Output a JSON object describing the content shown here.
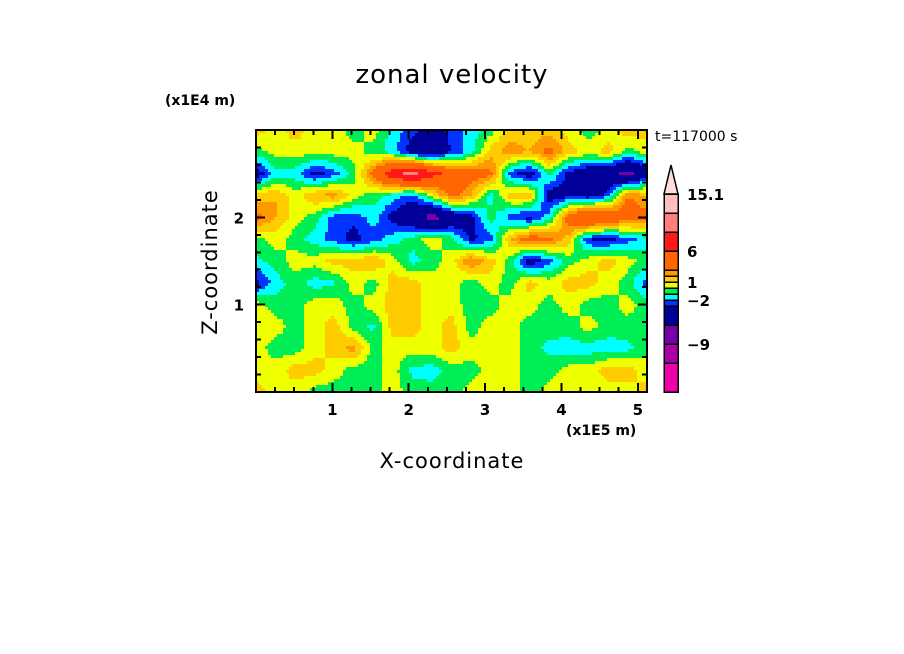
{
  "chart_data": {
    "type": "heatmap",
    "title": "zonal velocity",
    "xlabel": "X-coordinate",
    "ylabel": "Z-coordinate",
    "x_unit": "(x1E5 m)",
    "y_unit": "(x1E4 m)",
    "time_label": "t=117000 s",
    "xlim": [
      0,
      5.12
    ],
    "ylim": [
      0,
      3
    ],
    "xticks": [
      1,
      2,
      3,
      4,
      5
    ],
    "xtick_labels": [
      "1",
      "2",
      "3",
      "4",
      "5"
    ],
    "yticks": [
      1,
      2
    ],
    "ytick_labels": [
      "1",
      "2"
    ],
    "grid_note": "values sampled on 21 x-points (0..5.12) by 13 z-levels (3.0 down to 0.0)",
    "values": [
      [
        1.5,
        0.5,
        1.5,
        0.5,
        0.5,
        -0.5,
        0.5,
        -1.5,
        -2.5,
        -4,
        -2.5,
        -1.5,
        -0.5,
        1.5,
        1.5,
        1.5,
        0.5,
        -0.5,
        0.5,
        1.5,
        1.5
      ],
      [
        -0.5,
        0.5,
        0.5,
        0.5,
        0.5,
        0.5,
        -0.5,
        -1.5,
        -4,
        -5,
        -3,
        -1.5,
        1.5,
        2.5,
        2,
        3.5,
        1.5,
        0.5,
        1.5,
        -0.5,
        0.5
      ],
      [
        -4,
        -1.5,
        -1.5,
        -3.5,
        -2.5,
        -0.5,
        3.5,
        8,
        10,
        7,
        5,
        4,
        3.5,
        -2.5,
        -4,
        -0.5,
        -3.5,
        -4.5,
        -5,
        -7,
        -4
      ],
      [
        1.5,
        2,
        0.5,
        2,
        2.5,
        0.5,
        -0.5,
        -1.5,
        -2.5,
        0.5,
        3.5,
        2,
        -1.5,
        1.5,
        2,
        -4,
        -3.5,
        -4,
        -2.5,
        3,
        2
      ],
      [
        3.5,
        2,
        0.5,
        -0.5,
        -2.5,
        -2.7,
        -1.5,
        -3.5,
        -5,
        -7,
        -5,
        -3.5,
        -0.5,
        -2.5,
        -3.5,
        -1.5,
        4,
        6.5,
        5,
        4,
        3.5
      ],
      [
        -0.5,
        0.5,
        -0.5,
        -1.5,
        -2.5,
        -3.5,
        -2.5,
        -1.5,
        -0.5,
        0.5,
        -0.5,
        -3.3,
        -2.5,
        2,
        4,
        3.5,
        1.5,
        -3,
        -3.5,
        -2.5,
        -1.5
      ],
      [
        -1.2,
        -0.5,
        0.5,
        0.5,
        1.5,
        1.5,
        2,
        0.5,
        -1.5,
        -0.5,
        0.5,
        3.2,
        1.5,
        -0.5,
        -4,
        -2.5,
        -0.5,
        0.5,
        1.5,
        0.5,
        -0.5
      ],
      [
        -3.5,
        -1.5,
        -0.5,
        -1.5,
        -1.2,
        0.5,
        -0.5,
        1.5,
        1.5,
        0.5,
        0.5,
        -0.5,
        0.5,
        -0.5,
        1.5,
        0.5,
        1.5,
        1.5,
        0.5,
        -0.5,
        -2.5
      ],
      [
        0.5,
        -0.5,
        -0.5,
        0.5,
        0.5,
        -0.5,
        0.5,
        1.5,
        1.5,
        0.5,
        0.5,
        -0.5,
        -0.5,
        0.5,
        0.5,
        -0.5,
        0.5,
        -0.5,
        -0.5,
        0.5,
        -0.5
      ],
      [
        0.5,
        0.5,
        -0.5,
        0.5,
        1.5,
        -0.5,
        -1.2,
        1.5,
        1.5,
        0.5,
        1.5,
        -0.5,
        0.5,
        0.5,
        -0.5,
        -0.5,
        -0.5,
        0.5,
        -0.5,
        -0.5,
        -0.5
      ],
      [
        0.5,
        -0.5,
        -0.5,
        0.5,
        1.5,
        2.5,
        -0.5,
        0.5,
        0.5,
        0.5,
        1.5,
        0.5,
        0.5,
        0.5,
        -0.5,
        -1.3,
        -1.5,
        -1.5,
        -1.5,
        -1.3,
        -0.5
      ],
      [
        0.5,
        0.5,
        1.5,
        1.5,
        0.5,
        -0.5,
        -0.5,
        0.5,
        -1.3,
        -1.5,
        -0.5,
        -0.5,
        0.5,
        0.5,
        -0.5,
        -0.5,
        0.5,
        0.5,
        1.5,
        1.5,
        0.5
      ],
      [
        1.5,
        0.5,
        0.5,
        -0.5,
        -0.5,
        -0.5,
        -0.5,
        0.5,
        -0.5,
        -0.5,
        -0.5,
        0.5,
        0.5,
        0.5,
        -0.5,
        0.5,
        0.5,
        0.5,
        0.5,
        0.5,
        1.5
      ]
    ],
    "colorbar": {
      "levels": [
        -15,
        -12,
        -9,
        -6,
        -3,
        -2,
        -1,
        0,
        1,
        2,
        3,
        6,
        9,
        12,
        15.1
      ],
      "colors": [
        "#ee00aa",
        "#aa00aa",
        "#7700aa",
        "#000099",
        "#0033ff",
        "#00ffff",
        "#00ee55",
        "#eeff00",
        "#ffcc00",
        "#ff9900",
        "#ff6600",
        "#ff1919",
        "#ff7f7f",
        "#ffbfbf"
      ],
      "overflow_color": "#ffdddd",
      "labels": [
        {
          "value": 15.1,
          "text": "15.1"
        },
        {
          "value": 6,
          "text": "6"
        },
        {
          "value": 1,
          "text": "1"
        },
        {
          "value": -2,
          "text": "−2"
        },
        {
          "value": -9,
          "text": "−9"
        }
      ]
    }
  }
}
